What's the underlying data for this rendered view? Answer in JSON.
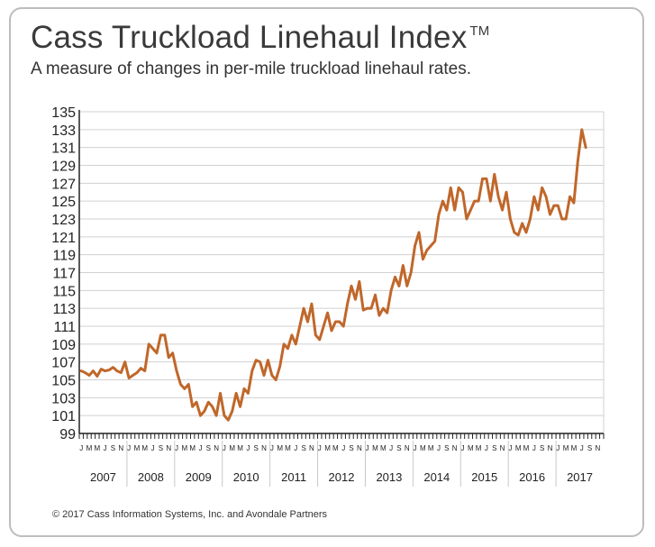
{
  "title": "Cass Truckload Linehaul Index",
  "trademark": "TM",
  "subtitle": "A measure of changes in per-mile truckload linehaul rates.",
  "copyright": "© 2017 Cass Information Systems, Inc. and Avondale Partners",
  "colors": {
    "line": "#c0672a",
    "grid": "#d0d0d0",
    "axis": "#222222"
  },
  "chart_data": {
    "type": "line",
    "title": "Cass Truckload Linehaul Index",
    "subtitle": "A measure of changes in per-mile truckload linehaul rates.",
    "xlabel": "",
    "ylabel": "",
    "ylim": [
      99,
      135
    ],
    "yticks": [
      99,
      101,
      103,
      105,
      107,
      109,
      111,
      113,
      115,
      117,
      119,
      121,
      123,
      125,
      127,
      129,
      131,
      133,
      135
    ],
    "grid": true,
    "month_labels": [
      "J",
      "M",
      "M",
      "J",
      "S",
      "N"
    ],
    "years": [
      "2007",
      "2008",
      "2009",
      "2010",
      "2011",
      "2012",
      "2013",
      "2014",
      "2015",
      "2016",
      "2017"
    ],
    "x_start": "2007-01",
    "x_end": "2017-12",
    "series": [
      {
        "values": [
          106.0,
          105.8,
          105.5,
          106.0,
          105.4,
          106.2,
          106.0,
          106.1,
          106.4,
          106.0,
          105.8,
          107.0,
          105.2,
          105.5,
          105.8,
          106.3,
          106.0,
          109.0,
          108.5,
          108.0,
          110.0,
          110.0,
          107.5,
          108.0,
          106.0,
          104.5,
          104.0,
          104.5,
          102.0,
          102.5,
          101.0,
          101.5,
          102.5,
          102.0,
          101.0,
          103.5,
          101.0,
          100.5,
          101.5,
          103.5,
          102.0,
          104.0,
          103.5,
          106.0,
          107.2,
          107.0,
          105.5,
          107.2,
          105.5,
          105.0,
          106.5,
          109.0,
          108.5,
          110.0,
          109.0,
          111.0,
          113.0,
          111.5,
          113.5,
          110.0,
          109.5,
          111.0,
          112.5,
          110.5,
          111.5,
          111.5,
          111.0,
          113.5,
          115.5,
          114.0,
          116.0,
          112.8,
          113.0,
          113.0,
          114.5,
          112.2,
          113.0,
          112.5,
          115.0,
          116.5,
          115.5,
          117.8,
          115.5,
          117.0,
          120.0,
          121.5,
          118.5,
          119.5,
          120.0,
          120.5,
          123.5,
          125.0,
          124.0,
          126.5,
          124.0,
          126.5,
          126.0,
          123.0,
          124.0,
          125.0,
          125.0,
          127.5,
          127.5,
          125.0,
          128.0,
          125.5,
          124.0,
          126.0,
          123.0,
          121.5,
          121.2,
          122.5,
          121.5,
          123.0,
          125.5,
          124.0,
          126.5,
          125.5,
          123.5,
          124.5,
          124.5,
          123.0,
          123.0,
          125.5,
          124.8,
          129.5,
          133.0,
          131.0
        ]
      }
    ]
  }
}
